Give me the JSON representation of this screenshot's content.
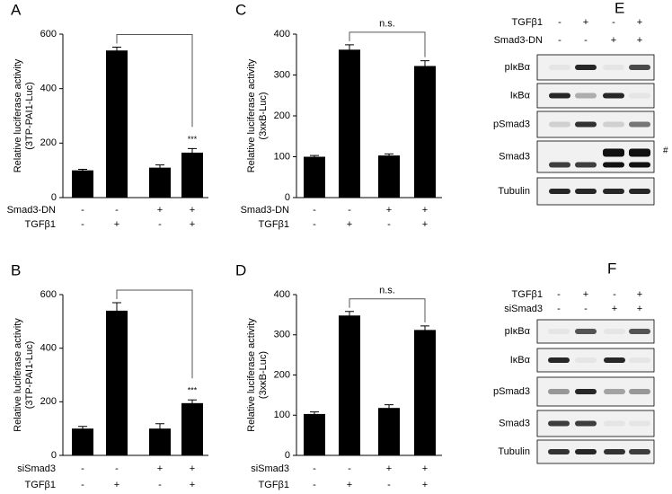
{
  "chart_data": [
    {
      "type": "bar",
      "panel": "A",
      "ylabel": [
        "Relative luciferase activity",
        "(3TP-PAI1-Luc)"
      ],
      "categories": [
        null,
        null,
        null,
        null
      ],
      "values": [
        100,
        540,
        110,
        165
      ],
      "errors": [
        4,
        12,
        10,
        15
      ],
      "color": "#000000",
      "ylim": [
        0,
        600
      ],
      "yticks": [
        0,
        200,
        400,
        600
      ],
      "star_label": "***",
      "conditions": [
        {
          "name": "Smad3-DN",
          "signs": [
            "-",
            "-",
            "+",
            "+"
          ]
        },
        {
          "name": "TGFβ1",
          "signs": [
            "-",
            "+",
            "-",
            "+"
          ]
        }
      ]
    },
    {
      "type": "bar",
      "panel": "B",
      "ylabel": [
        "Relative luciferase activity",
        "(3TP-PAI1-Luc)"
      ],
      "categories": [
        null,
        null,
        null,
        null
      ],
      "values": [
        100,
        540,
        100,
        195
      ],
      "errors": [
        8,
        30,
        18,
        12
      ],
      "color": "#000000",
      "ylim": [
        0,
        600
      ],
      "yticks": [
        0,
        200,
        400,
        600
      ],
      "star_label": "***",
      "conditions": [
        {
          "name": "siSmad3",
          "signs": [
            "-",
            "-",
            "+",
            "+"
          ]
        },
        {
          "name": "TGFβ1",
          "signs": [
            "-",
            "+",
            "-",
            "+"
          ]
        }
      ]
    },
    {
      "type": "bar",
      "panel": "C",
      "ylabel": [
        "Relative luciferase activity",
        "(3xκB-Luc)"
      ],
      "categories": [
        null,
        null,
        null,
        null
      ],
      "values": [
        100,
        362,
        103,
        322
      ],
      "errors": [
        3,
        12,
        4,
        13
      ],
      "color": "#000000",
      "ylim": [
        0,
        400
      ],
      "yticks": [
        0,
        100,
        200,
        300,
        400
      ],
      "bracket_label": "n.s.",
      "conditions": [
        {
          "name": "Smad3-DN",
          "signs": [
            "-",
            "-",
            "+",
            "+"
          ]
        },
        {
          "name": "TGFβ1",
          "signs": [
            "-",
            "+",
            "-",
            "+"
          ]
        }
      ]
    },
    {
      "type": "bar",
      "panel": "D",
      "ylabel": [
        "Relative luciferase activity",
        "(3xκB-Luc)"
      ],
      "categories": [
        null,
        null,
        null,
        null
      ],
      "values": [
        103,
        348,
        118,
        312
      ],
      "errors": [
        5,
        10,
        8,
        10
      ],
      "color": "#000000",
      "ylim": [
        0,
        400
      ],
      "yticks": [
        0,
        100,
        200,
        300,
        400
      ],
      "bracket_label": "n.s.",
      "conditions": [
        {
          "name": "siSmad3",
          "signs": [
            "-",
            "-",
            "+",
            "+"
          ]
        },
        {
          "name": "TGFβ1",
          "signs": [
            "-",
            "+",
            "-",
            "+"
          ]
        }
      ]
    }
  ],
  "blots": [
    {
      "panel": "E",
      "conditions": [
        {
          "name": "TGFβ1",
          "signs": [
            "-",
            "+",
            "-",
            "+"
          ]
        },
        {
          "name": "Smad3-DN",
          "signs": [
            "-",
            "-",
            "+",
            "+"
          ]
        }
      ],
      "rows": [
        "pIκBα",
        "IκBα",
        "pSmad3",
        "Smad3",
        "Tubulin"
      ],
      "marker": "#"
    },
    {
      "panel": "F",
      "conditions": [
        {
          "name": "TGFβ1",
          "signs": [
            "-",
            "+",
            "-",
            "+"
          ]
        },
        {
          "name": "siSmad3",
          "signs": [
            "-",
            "-",
            "+",
            "+"
          ]
        }
      ],
      "rows": [
        "pIκBα",
        "IκBα",
        "pSmad3",
        "Smad3",
        "Tubulin"
      ]
    }
  ]
}
